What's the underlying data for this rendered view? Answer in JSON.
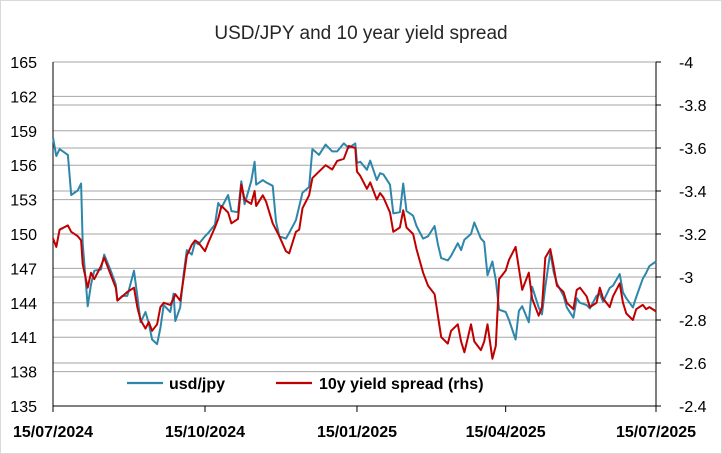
{
  "chart_data": {
    "type": "line",
    "title": "USD/JPY and 10 year yield spread",
    "x_ticks": [
      "15/07/2024",
      "15/10/2024",
      "15/01/2025",
      "15/04/2025",
      "15/07/2025"
    ],
    "x_range": [
      "2024-07-15",
      "2025-07-15"
    ],
    "y_left": {
      "range": [
        135,
        165
      ],
      "ticks": [
        "135",
        "138",
        "141",
        "144",
        "147",
        "150",
        "153",
        "156",
        "159",
        "162",
        "165"
      ]
    },
    "y_right": {
      "range": [
        -2.4,
        -4.0
      ],
      "ticks": [
        "-4",
        "-3.8",
        "-3.6",
        "-3.4",
        "-3.2",
        "-3",
        "-2.8",
        "-2.6",
        "-2.4"
      ],
      "inverted": true
    },
    "grid": true,
    "legend": {
      "placement": "bottom-inside"
    },
    "series": [
      {
        "name": "usd/jpy",
        "axis": "left",
        "color": "#2e86ab",
        "points": [
          [
            "2024-07-15",
            158.4
          ],
          [
            "2024-07-17",
            156.8
          ],
          [
            "2024-07-19",
            157.4
          ],
          [
            "2024-07-24",
            156.9
          ],
          [
            "2024-07-26",
            153.4
          ],
          [
            "2024-07-30",
            153.8
          ],
          [
            "2024-08-01",
            154.4
          ],
          [
            "2024-08-02",
            149.2
          ],
          [
            "2024-08-05",
            143.7
          ],
          [
            "2024-08-07",
            145.6
          ],
          [
            "2024-08-09",
            146.8
          ],
          [
            "2024-08-13",
            146.9
          ],
          [
            "2024-08-15",
            148.2
          ],
          [
            "2024-08-19",
            146.8
          ],
          [
            "2024-08-22",
            145.6
          ],
          [
            "2024-08-23",
            144.2
          ],
          [
            "2024-08-26",
            144.6
          ],
          [
            "2024-08-29",
            144.6
          ],
          [
            "2024-09-02",
            146.8
          ],
          [
            "2024-09-04",
            144.6
          ],
          [
            "2024-09-06",
            142.3
          ],
          [
            "2024-09-09",
            143.2
          ],
          [
            "2024-09-11",
            142.2
          ],
          [
            "2024-09-13",
            140.8
          ],
          [
            "2024-09-16",
            140.4
          ],
          [
            "2024-09-18",
            141.8
          ],
          [
            "2024-09-20",
            143.8
          ],
          [
            "2024-09-24",
            143.2
          ],
          [
            "2024-09-26",
            144.8
          ],
          [
            "2024-09-27",
            142.4
          ],
          [
            "2024-09-30",
            143.6
          ],
          [
            "2024-10-02",
            146.4
          ],
          [
            "2024-10-04",
            148.6
          ],
          [
            "2024-10-07",
            148.2
          ],
          [
            "2024-10-09",
            149.3
          ],
          [
            "2024-10-11",
            149.1
          ],
          [
            "2024-10-15",
            149.8
          ],
          [
            "2024-10-17",
            150.1
          ],
          [
            "2024-10-21",
            150.8
          ],
          [
            "2024-10-23",
            152.7
          ],
          [
            "2024-10-25",
            152.3
          ],
          [
            "2024-10-29",
            153.4
          ],
          [
            "2024-10-31",
            152.0
          ],
          [
            "2024-11-04",
            151.9
          ],
          [
            "2024-11-06",
            154.6
          ],
          [
            "2024-11-08",
            152.6
          ],
          [
            "2024-11-12",
            154.6
          ],
          [
            "2024-11-14",
            156.3
          ],
          [
            "2024-11-15",
            154.3
          ],
          [
            "2024-11-19",
            154.7
          ],
          [
            "2024-11-21",
            154.5
          ],
          [
            "2024-11-25",
            154.2
          ],
          [
            "2024-11-27",
            151.1
          ],
          [
            "2024-11-29",
            149.8
          ],
          [
            "2024-12-03",
            149.6
          ],
          [
            "2024-12-05",
            150.1
          ],
          [
            "2024-12-09",
            151.2
          ],
          [
            "2024-12-11",
            152.4
          ],
          [
            "2024-12-13",
            153.6
          ],
          [
            "2024-12-17",
            154.1
          ],
          [
            "2024-12-19",
            157.4
          ],
          [
            "2024-12-23",
            156.9
          ],
          [
            "2024-12-27",
            157.8
          ],
          [
            "2024-12-31",
            157.2
          ],
          [
            "2025-01-03",
            157.2
          ],
          [
            "2025-01-07",
            157.9
          ],
          [
            "2025-01-10",
            157.5
          ],
          [
            "2025-01-14",
            157.9
          ],
          [
            "2025-01-15",
            156.2
          ],
          [
            "2025-01-17",
            156.3
          ],
          [
            "2025-01-21",
            155.6
          ],
          [
            "2025-01-23",
            156.4
          ],
          [
            "2025-01-27",
            154.7
          ],
          [
            "2025-01-29",
            155.3
          ],
          [
            "2025-01-31",
            155.2
          ],
          [
            "2025-02-04",
            154.3
          ],
          [
            "2025-02-06",
            151.8
          ],
          [
            "2025-02-10",
            151.9
          ],
          [
            "2025-02-12",
            154.4
          ],
          [
            "2025-02-14",
            152.0
          ],
          [
            "2025-02-18",
            151.6
          ],
          [
            "2025-02-20",
            150.7
          ],
          [
            "2025-02-24",
            149.6
          ],
          [
            "2025-02-27",
            149.8
          ],
          [
            "2025-03-03",
            150.7
          ],
          [
            "2025-03-05",
            149.1
          ],
          [
            "2025-03-07",
            147.9
          ],
          [
            "2025-03-11",
            147.7
          ],
          [
            "2025-03-13",
            148.1
          ],
          [
            "2025-03-17",
            149.2
          ],
          [
            "2025-03-19",
            148.6
          ],
          [
            "2025-03-21",
            149.5
          ],
          [
            "2025-03-25",
            150.0
          ],
          [
            "2025-03-27",
            151.0
          ],
          [
            "2025-03-31",
            149.6
          ],
          [
            "2025-04-02",
            149.3
          ],
          [
            "2025-04-04",
            146.4
          ],
          [
            "2025-04-07",
            147.6
          ],
          [
            "2025-04-09",
            146.0
          ],
          [
            "2025-04-11",
            143.4
          ],
          [
            "2025-04-15",
            143.2
          ],
          [
            "2025-04-17",
            142.5
          ],
          [
            "2025-04-21",
            140.8
          ],
          [
            "2025-04-23",
            143.3
          ],
          [
            "2025-04-25",
            143.7
          ],
          [
            "2025-04-29",
            142.3
          ],
          [
            "2025-05-01",
            145.4
          ],
          [
            "2025-05-05",
            143.6
          ],
          [
            "2025-05-07",
            143.0
          ],
          [
            "2025-05-09",
            145.4
          ],
          [
            "2025-05-12",
            148.4
          ],
          [
            "2025-05-14",
            146.7
          ],
          [
            "2025-05-16",
            145.7
          ],
          [
            "2025-05-20",
            144.6
          ],
          [
            "2025-05-22",
            143.6
          ],
          [
            "2025-05-26",
            142.7
          ],
          [
            "2025-05-28",
            144.4
          ],
          [
            "2025-05-30",
            144.0
          ],
          [
            "2025-06-03",
            143.8
          ],
          [
            "2025-06-05",
            143.5
          ],
          [
            "2025-06-09",
            144.6
          ],
          [
            "2025-06-11",
            144.8
          ],
          [
            "2025-06-13",
            144.1
          ],
          [
            "2025-06-17",
            145.3
          ],
          [
            "2025-06-19",
            145.5
          ],
          [
            "2025-06-23",
            146.5
          ],
          [
            "2025-06-25",
            144.9
          ],
          [
            "2025-06-27",
            144.4
          ],
          [
            "2025-07-01",
            143.6
          ],
          [
            "2025-07-03",
            144.5
          ],
          [
            "2025-07-07",
            146.1
          ],
          [
            "2025-07-09",
            146.6
          ],
          [
            "2025-07-11",
            147.2
          ],
          [
            "2025-07-15",
            147.6
          ]
        ]
      },
      {
        "name": "10y yield spread (rhs)",
        "axis": "right",
        "color": "#c00000",
        "points": [
          [
            "2024-07-15",
            -3.18
          ],
          [
            "2024-07-17",
            -3.14
          ],
          [
            "2024-07-19",
            -3.22
          ],
          [
            "2024-07-24",
            -3.24
          ],
          [
            "2024-07-26",
            -3.21
          ],
          [
            "2024-07-30",
            -3.19
          ],
          [
            "2024-08-01",
            -3.17
          ],
          [
            "2024-08-02",
            -3.06
          ],
          [
            "2024-08-05",
            -2.95
          ],
          [
            "2024-08-07",
            -3.02
          ],
          [
            "2024-08-09",
            -2.99
          ],
          [
            "2024-08-13",
            -3.05
          ],
          [
            "2024-08-15",
            -3.09
          ],
          [
            "2024-08-19",
            -3.01
          ],
          [
            "2024-08-22",
            -2.95
          ],
          [
            "2024-08-23",
            -2.89
          ],
          [
            "2024-08-26",
            -2.91
          ],
          [
            "2024-08-29",
            -2.93
          ],
          [
            "2024-09-02",
            -2.95
          ],
          [
            "2024-09-04",
            -2.86
          ],
          [
            "2024-09-06",
            -2.8
          ],
          [
            "2024-09-09",
            -2.76
          ],
          [
            "2024-09-11",
            -2.79
          ],
          [
            "2024-09-13",
            -2.75
          ],
          [
            "2024-09-16",
            -2.78
          ],
          [
            "2024-09-18",
            -2.86
          ],
          [
            "2024-09-20",
            -2.88
          ],
          [
            "2024-09-24",
            -2.87
          ],
          [
            "2024-09-26",
            -2.9
          ],
          [
            "2024-09-27",
            -2.92
          ],
          [
            "2024-09-30",
            -2.89
          ],
          [
            "2024-10-02",
            -2.99
          ],
          [
            "2024-10-04",
            -3.1
          ],
          [
            "2024-10-07",
            -3.15
          ],
          [
            "2024-10-09",
            -3.17
          ],
          [
            "2024-10-11",
            -3.16
          ],
          [
            "2024-10-15",
            -3.12
          ],
          [
            "2024-10-17",
            -3.16
          ],
          [
            "2024-10-21",
            -3.23
          ],
          [
            "2024-10-23",
            -3.27
          ],
          [
            "2024-10-25",
            -3.33
          ],
          [
            "2024-10-29",
            -3.3
          ],
          [
            "2024-10-31",
            -3.25
          ],
          [
            "2024-11-04",
            -3.27
          ],
          [
            "2024-11-06",
            -3.43
          ],
          [
            "2024-11-08",
            -3.36
          ],
          [
            "2024-11-12",
            -3.34
          ],
          [
            "2024-11-14",
            -3.4
          ],
          [
            "2024-11-15",
            -3.33
          ],
          [
            "2024-11-19",
            -3.38
          ],
          [
            "2024-11-21",
            -3.35
          ],
          [
            "2024-11-25",
            -3.25
          ],
          [
            "2024-11-27",
            -3.22
          ],
          [
            "2024-11-29",
            -3.19
          ],
          [
            "2024-12-03",
            -3.12
          ],
          [
            "2024-12-05",
            -3.11
          ],
          [
            "2024-12-09",
            -3.21
          ],
          [
            "2024-12-11",
            -3.22
          ],
          [
            "2024-12-13",
            -3.32
          ],
          [
            "2024-12-17",
            -3.38
          ],
          [
            "2024-12-19",
            -3.46
          ],
          [
            "2024-12-23",
            -3.49
          ],
          [
            "2024-12-27",
            -3.52
          ],
          [
            "2024-12-31",
            -3.5
          ],
          [
            "2025-01-03",
            -3.54
          ],
          [
            "2025-01-07",
            -3.55
          ],
          [
            "2025-01-10",
            -3.61
          ],
          [
            "2025-01-14",
            -3.6
          ],
          [
            "2025-01-15",
            -3.49
          ],
          [
            "2025-01-17",
            -3.47
          ],
          [
            "2025-01-21",
            -3.41
          ],
          [
            "2025-01-23",
            -3.44
          ],
          [
            "2025-01-27",
            -3.36
          ],
          [
            "2025-01-29",
            -3.39
          ],
          [
            "2025-01-31",
            -3.37
          ],
          [
            "2025-02-04",
            -3.3
          ],
          [
            "2025-02-06",
            -3.21
          ],
          [
            "2025-02-10",
            -3.23
          ],
          [
            "2025-02-12",
            -3.31
          ],
          [
            "2025-02-14",
            -3.23
          ],
          [
            "2025-02-18",
            -3.2
          ],
          [
            "2025-02-20",
            -3.13
          ],
          [
            "2025-02-24",
            -3.02
          ],
          [
            "2025-02-27",
            -2.96
          ],
          [
            "2025-03-03",
            -2.92
          ],
          [
            "2025-03-05",
            -2.82
          ],
          [
            "2025-03-07",
            -2.72
          ],
          [
            "2025-03-11",
            -2.69
          ],
          [
            "2025-03-13",
            -2.75
          ],
          [
            "2025-03-17",
            -2.78
          ],
          [
            "2025-03-19",
            -2.7
          ],
          [
            "2025-03-21",
            -2.65
          ],
          [
            "2025-03-25",
            -2.78
          ],
          [
            "2025-03-27",
            -2.7
          ],
          [
            "2025-03-31",
            -2.66
          ],
          [
            "2025-04-02",
            -2.7
          ],
          [
            "2025-04-04",
            -2.78
          ],
          [
            "2025-04-07",
            -2.62
          ],
          [
            "2025-04-09",
            -2.68
          ],
          [
            "2025-04-11",
            -2.99
          ],
          [
            "2025-04-15",
            -3.03
          ],
          [
            "2025-04-17",
            -3.08
          ],
          [
            "2025-04-21",
            -3.14
          ],
          [
            "2025-04-23",
            -3.04
          ],
          [
            "2025-04-25",
            -2.94
          ],
          [
            "2025-04-29",
            -3.02
          ],
          [
            "2025-05-01",
            -2.9
          ],
          [
            "2025-05-05",
            -2.82
          ],
          [
            "2025-05-07",
            -2.86
          ],
          [
            "2025-05-09",
            -3.09
          ],
          [
            "2025-05-12",
            -3.13
          ],
          [
            "2025-05-14",
            -3.05
          ],
          [
            "2025-05-16",
            -2.96
          ],
          [
            "2025-05-20",
            -2.93
          ],
          [
            "2025-05-22",
            -2.88
          ],
          [
            "2025-05-26",
            -2.85
          ],
          [
            "2025-05-28",
            -2.94
          ],
          [
            "2025-05-30",
            -2.95
          ],
          [
            "2025-06-03",
            -2.91
          ],
          [
            "2025-06-05",
            -2.86
          ],
          [
            "2025-06-09",
            -2.88
          ],
          [
            "2025-06-11",
            -2.95
          ],
          [
            "2025-06-13",
            -2.9
          ],
          [
            "2025-06-17",
            -2.86
          ],
          [
            "2025-06-19",
            -2.91
          ],
          [
            "2025-06-23",
            -2.97
          ],
          [
            "2025-06-25",
            -2.88
          ],
          [
            "2025-06-27",
            -2.83
          ],
          [
            "2025-07-01",
            -2.8
          ],
          [
            "2025-07-03",
            -2.85
          ],
          [
            "2025-07-07",
            -2.87
          ],
          [
            "2025-07-09",
            -2.85
          ],
          [
            "2025-07-11",
            -2.86
          ],
          [
            "2025-07-15",
            -2.84
          ]
        ]
      }
    ]
  }
}
